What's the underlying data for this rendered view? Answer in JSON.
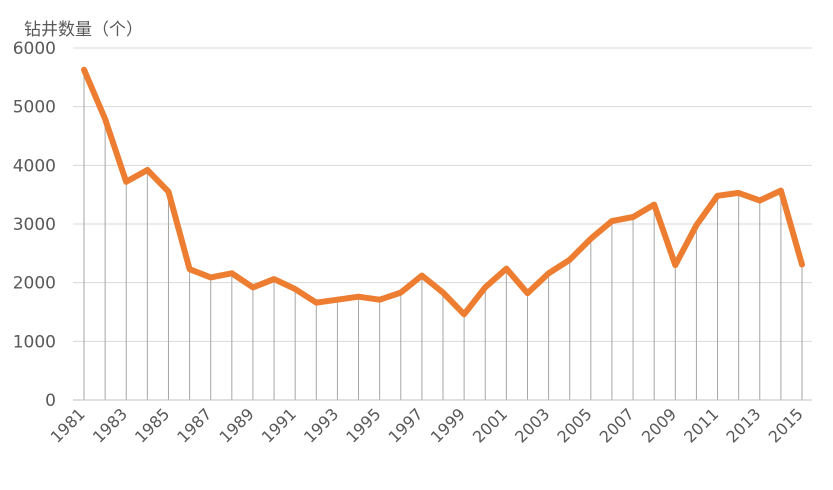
{
  "chart_data": {
    "type": "line",
    "title": "",
    "ylabel": "钻井数量（个）",
    "xlabel": "",
    "ylim": [
      0,
      6000
    ],
    "yticks": [
      0,
      1000,
      2000,
      3000,
      4000,
      5000,
      6000
    ],
    "ytick_labels": [
      "0",
      "1000",
      "2000",
      "3000",
      "4000",
      "5000",
      "6000"
    ],
    "xtick_labels": [
      "1981",
      "1983",
      "1985",
      "1987",
      "1989",
      "1991",
      "1993",
      "1995",
      "1997",
      "1999",
      "2001",
      "2003",
      "2005",
      "2007",
      "2009",
      "2011",
      "2013",
      "2015"
    ],
    "grid": true,
    "drop_lines": true,
    "line_color": "#ED7D31",
    "x": [
      1981,
      1982,
      1983,
      1984,
      1985,
      1986,
      1987,
      1988,
      1989,
      1990,
      1991,
      1992,
      1993,
      1994,
      1995,
      1996,
      1997,
      1998,
      1999,
      2000,
      2001,
      2002,
      2003,
      2004,
      2005,
      2006,
      2007,
      2008,
      2009,
      2010,
      2011,
      2012,
      2013,
      2014,
      2015
    ],
    "series": [
      {
        "values": [
          5630,
          4790,
          3720,
          3920,
          3550,
          2230,
          2090,
          2160,
          1920,
          2060,
          1890,
          1660,
          1710,
          1760,
          1710,
          1830,
          2120,
          1830,
          1460,
          1920,
          2240,
          1820,
          2160,
          2390,
          2750,
          3050,
          3120,
          3330,
          2300,
          2980,
          3480,
          3530,
          3400,
          3570,
          2310
        ]
      }
    ]
  }
}
